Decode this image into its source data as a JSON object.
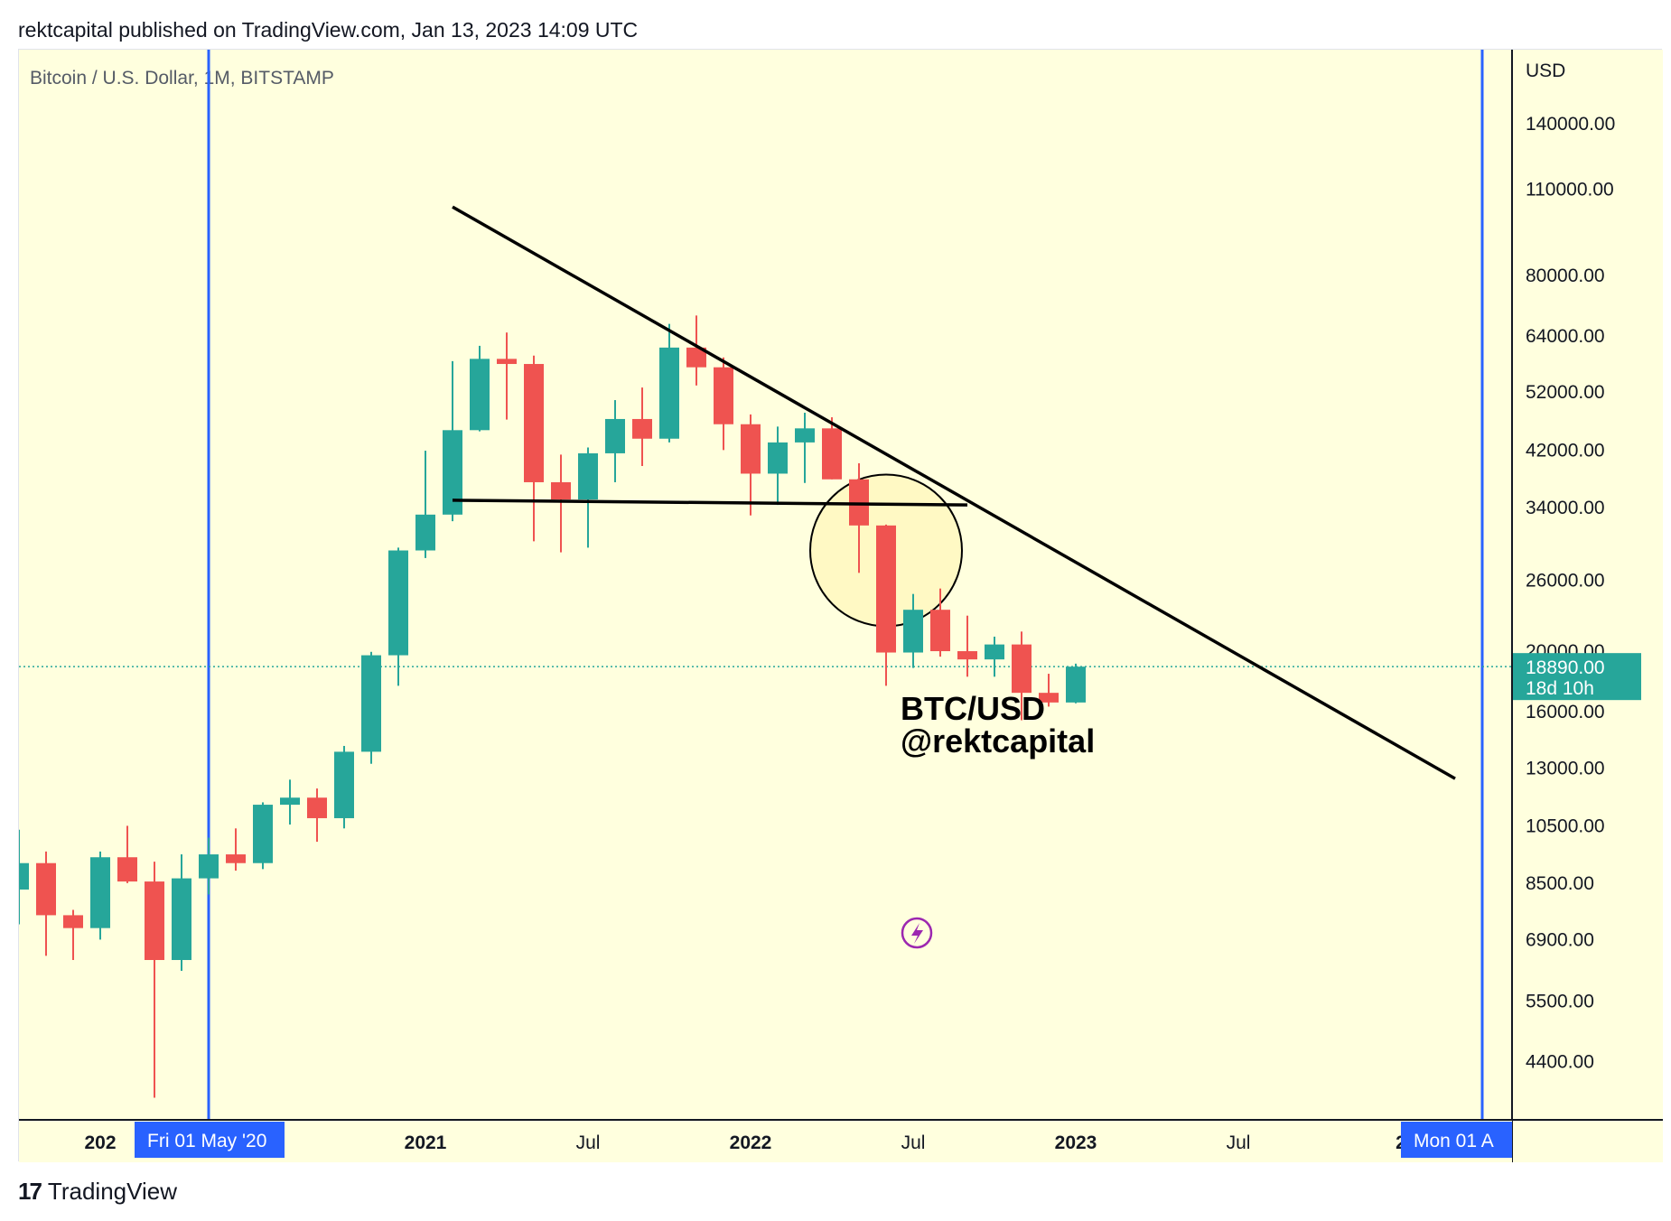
{
  "header": {
    "published_text": "rektcapital published on TradingView.com, Jan 13, 2023 14:09 UTC"
  },
  "symbol_info": "Bitcoin / U.S. Dollar, 1M, BITSTAMP",
  "footer": {
    "logo_icon": "tradingview-logo-icon",
    "brand": "TradingView"
  },
  "annotation": {
    "line1": "BTC/USD",
    "line2": "@rektcapital"
  },
  "colors": {
    "up": "#26a69a",
    "down": "#ef5350",
    "background": "#ffffde",
    "marker": "#2962ff",
    "trendline": "#000000",
    "highlight": "#fff9c4"
  },
  "chart_data": {
    "type": "candlestick",
    "y_scale": "log",
    "currency_label": "USD",
    "y_ticks": [
      "140000.00",
      "110000.00",
      "80000.00",
      "64000.00",
      "52000.00",
      "42000.00",
      "34000.00",
      "26000.00",
      "20000.00",
      "16000.00",
      "13000.00",
      "10500.00",
      "8500.00",
      "6900.00",
      "5500.00",
      "4400.00"
    ],
    "y_tick_values": [
      140000,
      110000,
      80000,
      64000,
      52000,
      42000,
      34000,
      26000,
      20000,
      16000,
      13000,
      10500,
      8500,
      6900,
      5500,
      4400
    ],
    "ylim": [
      3500,
      175000
    ],
    "x_ticks": [
      {
        "label": "202",
        "bold": true,
        "date": "2020-01"
      },
      {
        "label": "2021",
        "bold": true,
        "date": "2021-01"
      },
      {
        "label": "Jul",
        "bold": false,
        "date": "2021-07"
      },
      {
        "label": "2022",
        "bold": true,
        "date": "2022-01"
      },
      {
        "label": "Jul",
        "bold": false,
        "date": "2022-07"
      },
      {
        "label": "2023",
        "bold": true,
        "date": "2023-01"
      },
      {
        "label": "Jul",
        "bold": false,
        "date": "2023-07"
      },
      {
        "label": "2",
        "bold": true,
        "date": "2024-01"
      }
    ],
    "current_price": {
      "label": "18890.00",
      "countdown": "18d 10h",
      "value": 18890
    },
    "markers": [
      {
        "label": "Fri 01 May '20",
        "date": "2020-05"
      },
      {
        "label": "Mon 01 A",
        "date": "2024-04"
      }
    ],
    "candles": [
      {
        "date": "2019-10",
        "open": 8300,
        "high": 10350,
        "low": 7300,
        "close": 9150
      },
      {
        "date": "2019-11",
        "open": 9150,
        "high": 9550,
        "low": 6500,
        "close": 7550
      },
      {
        "date": "2019-12",
        "open": 7550,
        "high": 7700,
        "low": 6400,
        "close": 7200
      },
      {
        "date": "2020-01",
        "open": 7200,
        "high": 9550,
        "low": 6900,
        "close": 9350
      },
      {
        "date": "2020-02",
        "open": 9350,
        "high": 10500,
        "low": 8500,
        "close": 8550
      },
      {
        "date": "2020-03",
        "open": 8550,
        "high": 9200,
        "low": 3850,
        "close": 6400
      },
      {
        "date": "2020-04",
        "open": 6400,
        "high": 9450,
        "low": 6150,
        "close": 8650
      },
      {
        "date": "2020-05",
        "open": 8650,
        "high": 10050,
        "low": 8150,
        "close": 9450
      },
      {
        "date": "2020-06",
        "open": 9450,
        "high": 10400,
        "low": 8900,
        "close": 9150
      },
      {
        "date": "2020-07",
        "open": 9150,
        "high": 11450,
        "low": 8950,
        "close": 11350
      },
      {
        "date": "2020-08",
        "open": 11350,
        "high": 12450,
        "low": 10550,
        "close": 11650
      },
      {
        "date": "2020-09",
        "open": 11650,
        "high": 12050,
        "low": 9900,
        "close": 10800
      },
      {
        "date": "2020-10",
        "open": 10800,
        "high": 14100,
        "low": 10400,
        "close": 13800
      },
      {
        "date": "2020-11",
        "open": 13800,
        "high": 19950,
        "low": 13200,
        "close": 19700
      },
      {
        "date": "2020-12",
        "open": 19700,
        "high": 29300,
        "low": 17600,
        "close": 29000
      },
      {
        "date": "2021-01",
        "open": 29000,
        "high": 41900,
        "low": 28200,
        "close": 33100
      },
      {
        "date": "2021-02",
        "open": 33100,
        "high": 58300,
        "low": 32300,
        "close": 45200
      },
      {
        "date": "2021-03",
        "open": 45200,
        "high": 61700,
        "low": 45000,
        "close": 58800
      },
      {
        "date": "2021-04",
        "open": 58800,
        "high": 64800,
        "low": 47000,
        "close": 57700
      },
      {
        "date": "2021-05",
        "open": 57700,
        "high": 59500,
        "low": 30000,
        "close": 37300
      },
      {
        "date": "2021-06",
        "open": 37300,
        "high": 41300,
        "low": 28800,
        "close": 35000
      },
      {
        "date": "2021-07",
        "open": 35000,
        "high": 42400,
        "low": 29300,
        "close": 41500
      },
      {
        "date": "2021-08",
        "open": 41500,
        "high": 50500,
        "low": 37300,
        "close": 47100
      },
      {
        "date": "2021-09",
        "open": 47100,
        "high": 52900,
        "low": 39600,
        "close": 43800
      },
      {
        "date": "2021-10",
        "open": 43800,
        "high": 66900,
        "low": 43200,
        "close": 61300
      },
      {
        "date": "2021-11",
        "open": 61300,
        "high": 69000,
        "low": 53300,
        "close": 57000
      },
      {
        "date": "2021-12",
        "open": 57000,
        "high": 59100,
        "low": 42000,
        "close": 46200
      },
      {
        "date": "2022-01",
        "open": 46200,
        "high": 47900,
        "low": 33000,
        "close": 38500
      },
      {
        "date": "2022-02",
        "open": 38500,
        "high": 45800,
        "low": 34300,
        "close": 43200
      },
      {
        "date": "2022-03",
        "open": 43200,
        "high": 48200,
        "low": 37200,
        "close": 45500
      },
      {
        "date": "2022-04",
        "open": 45500,
        "high": 47400,
        "low": 37700,
        "close": 37700
      },
      {
        "date": "2022-05",
        "open": 37700,
        "high": 40000,
        "low": 26700,
        "close": 31800
      },
      {
        "date": "2022-06",
        "open": 31800,
        "high": 31900,
        "low": 17600,
        "close": 19900
      },
      {
        "date": "2022-07",
        "open": 19900,
        "high": 24700,
        "low": 18800,
        "close": 23300
      },
      {
        "date": "2022-08",
        "open": 23300,
        "high": 25200,
        "low": 19600,
        "close": 20000
      },
      {
        "date": "2022-09",
        "open": 20000,
        "high": 22800,
        "low": 18200,
        "close": 19400
      },
      {
        "date": "2022-10",
        "open": 19400,
        "high": 21100,
        "low": 18200,
        "close": 20500
      },
      {
        "date": "2022-11",
        "open": 20500,
        "high": 21500,
        "low": 15500,
        "close": 17150
      },
      {
        "date": "2022-12",
        "open": 17150,
        "high": 18400,
        "low": 16300,
        "close": 16550
      },
      {
        "date": "2023-01",
        "open": 16550,
        "high": 19100,
        "low": 16500,
        "close": 18890
      }
    ],
    "drawings": [
      {
        "kind": "descending-trendline",
        "from": {
          "date": "2021-02",
          "price": 103000
        },
        "to": {
          "date": "2024-03",
          "price": 12500
        }
      },
      {
        "kind": "support-line",
        "from": {
          "date": "2021-02",
          "price": 34900
        },
        "to": {
          "date": "2022-09",
          "price": 34300
        }
      },
      {
        "kind": "highlight-circle",
        "center": {
          "date": "2022-06",
          "price": 29000
        }
      }
    ],
    "grid": false
  }
}
